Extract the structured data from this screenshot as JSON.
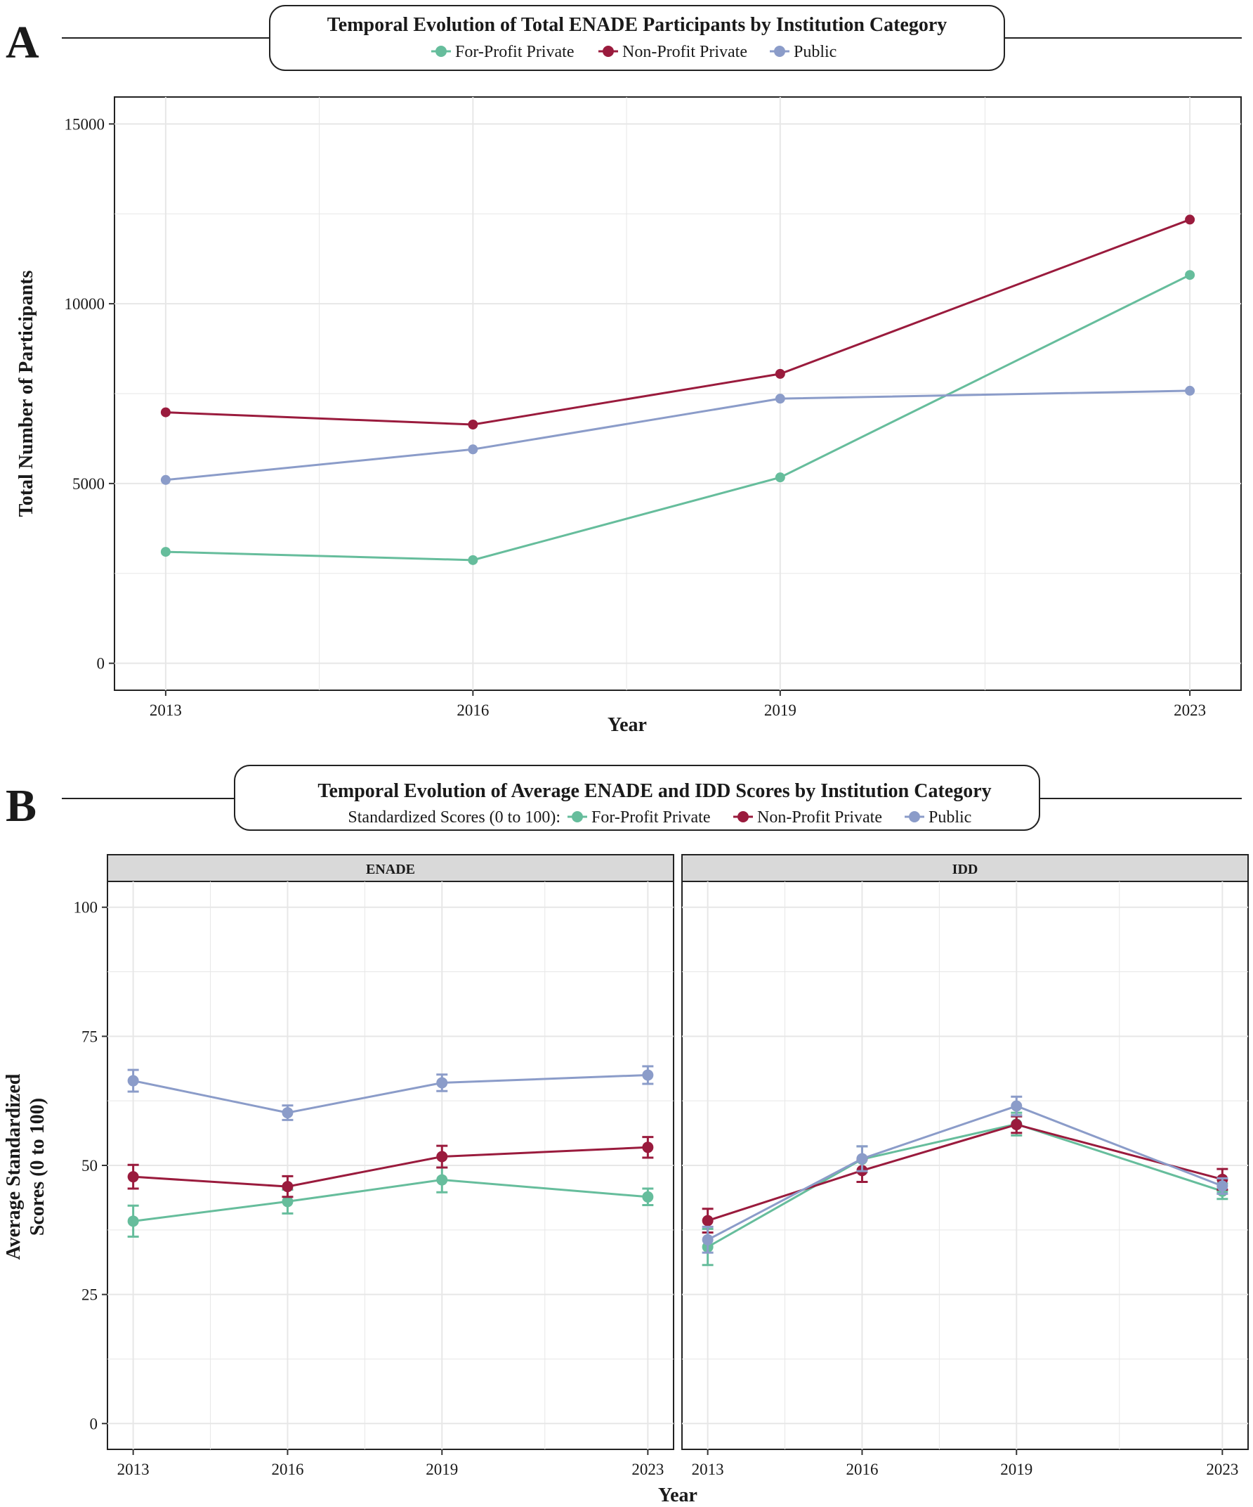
{
  "colors": {
    "for_profit": "#66bd9c",
    "non_profit": "#9a1b3d",
    "public": "#8b9cc9",
    "grid": "#e7e7e7",
    "strip_fill": "#d9d9d9"
  },
  "panel_a": {
    "letter": "A",
    "xlabel": "Year",
    "ylabel": "Total Number of Participants"
  },
  "panel_b": {
    "letter": "B",
    "legend_prefix": "Standardized Scores (0 to 100):",
    "xlabel": "Year",
    "ylabel_line1": "Average Standardized",
    "ylabel_line2": "Scores (0 to 100)"
  },
  "chart_data": [
    {
      "type": "line",
      "title": "Temporal Evolution of Total ENADE Participants by Institution Category",
      "x": [
        2013,
        2016,
        2019,
        2023
      ],
      "xticks": [
        "2013",
        "2016",
        "2019",
        "2023"
      ],
      "ylim": [
        -750,
        15750
      ],
      "yticks": [
        0,
        5000,
        10000,
        15000
      ],
      "ytick_labels": [
        "0",
        "5000",
        "10000",
        "15000"
      ],
      "series": [
        {
          "key": "for_profit",
          "name": "For-Profit Private",
          "values": [
            3100,
            2870,
            5170,
            10800
          ]
        },
        {
          "key": "non_profit",
          "name": "Non-Profit Private",
          "values": [
            6980,
            6640,
            8050,
            12340
          ]
        },
        {
          "key": "public",
          "name": "Public",
          "values": [
            5100,
            5950,
            7360,
            7580
          ]
        }
      ]
    },
    {
      "type": "line",
      "title": "Temporal Evolution of Average ENADE and IDD Scores by Institution Category",
      "facets": [
        "ENADE",
        "IDD"
      ],
      "x": [
        2013,
        2016,
        2019,
        2023
      ],
      "xticks": [
        "2013",
        "2016",
        "2019",
        "2023"
      ],
      "ylim": [
        -5,
        105
      ],
      "yticks": [
        0,
        25,
        50,
        75,
        100
      ],
      "ytick_labels": [
        "0",
        "25",
        "50",
        "75",
        "100"
      ],
      "series": [
        {
          "key": "for_profit",
          "facet": "ENADE",
          "name": "For-Profit Private",
          "values": [
            39.2,
            43.0,
            47.2,
            43.9
          ],
          "err": [
            3.0,
            2.3,
            2.4,
            1.6
          ]
        },
        {
          "key": "non_profit",
          "facet": "ENADE",
          "name": "Non-Profit Private",
          "values": [
            47.8,
            45.9,
            51.7,
            53.5
          ],
          "err": [
            2.3,
            2.0,
            2.1,
            2.0
          ]
        },
        {
          "key": "public",
          "facet": "ENADE",
          "name": "Public",
          "values": [
            66.4,
            60.2,
            66.0,
            67.5
          ],
          "err": [
            2.1,
            1.4,
            1.6,
            1.7
          ]
        },
        {
          "key": "for_profit",
          "facet": "IDD",
          "name": "For-Profit Private",
          "values": [
            34.2,
            51.2,
            58.0,
            45.0
          ],
          "err": [
            3.5,
            2.5,
            2.2,
            1.5
          ]
        },
        {
          "key": "non_profit",
          "facet": "IDD",
          "name": "Non-Profit Private",
          "values": [
            39.3,
            49.0,
            57.9,
            47.3
          ],
          "err": [
            2.3,
            2.2,
            1.6,
            2.0
          ]
        },
        {
          "key": "public",
          "facet": "IDD",
          "name": "Public",
          "values": [
            35.6,
            51.3,
            61.5,
            46.0
          ],
          "err": [
            2.5,
            2.4,
            1.8,
            1.5
          ]
        }
      ]
    }
  ]
}
